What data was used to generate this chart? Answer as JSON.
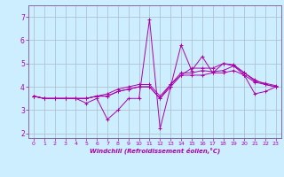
{
  "xlabel": "Windchill (Refroidissement éolien,°C)",
  "ylabel": "",
  "bg_color": "#cceeff",
  "line_color": "#aa00aa",
  "grid_color": "#aabbcc",
  "spine_color": "#8866aa",
  "xlim": [
    -0.5,
    23.5
  ],
  "ylim": [
    1.8,
    7.5
  ],
  "xticks": [
    0,
    1,
    2,
    3,
    4,
    5,
    6,
    7,
    8,
    9,
    10,
    11,
    12,
    13,
    14,
    15,
    16,
    17,
    18,
    19,
    20,
    21,
    22,
    23
  ],
  "yticks": [
    2,
    3,
    4,
    5,
    6,
    7
  ],
  "series": [
    [
      3.6,
      3.5,
      3.5,
      3.5,
      3.5,
      3.3,
      3.5,
      2.6,
      3.0,
      3.5,
      3.5,
      6.9,
      2.2,
      4.0,
      5.8,
      4.7,
      5.3,
      4.6,
      5.0,
      4.9,
      4.5,
      3.7,
      3.8,
      4.0
    ],
    [
      3.6,
      3.5,
      3.5,
      3.5,
      3.5,
      3.5,
      3.6,
      3.6,
      3.8,
      3.9,
      4.0,
      4.0,
      3.5,
      4.0,
      4.5,
      4.5,
      4.5,
      4.6,
      4.6,
      4.7,
      4.5,
      4.2,
      4.1,
      4.0
    ],
    [
      3.6,
      3.5,
      3.5,
      3.5,
      3.5,
      3.5,
      3.6,
      3.6,
      3.8,
      3.9,
      4.0,
      4.0,
      3.5,
      4.1,
      4.5,
      4.8,
      4.8,
      4.8,
      5.0,
      4.95,
      4.6,
      4.3,
      4.1,
      4.0
    ],
    [
      3.6,
      3.5,
      3.5,
      3.5,
      3.5,
      3.5,
      3.6,
      3.7,
      3.9,
      4.0,
      4.1,
      4.1,
      3.6,
      4.1,
      4.6,
      4.6,
      4.7,
      4.65,
      4.7,
      4.9,
      4.6,
      4.25,
      4.15,
      4.05
    ]
  ]
}
